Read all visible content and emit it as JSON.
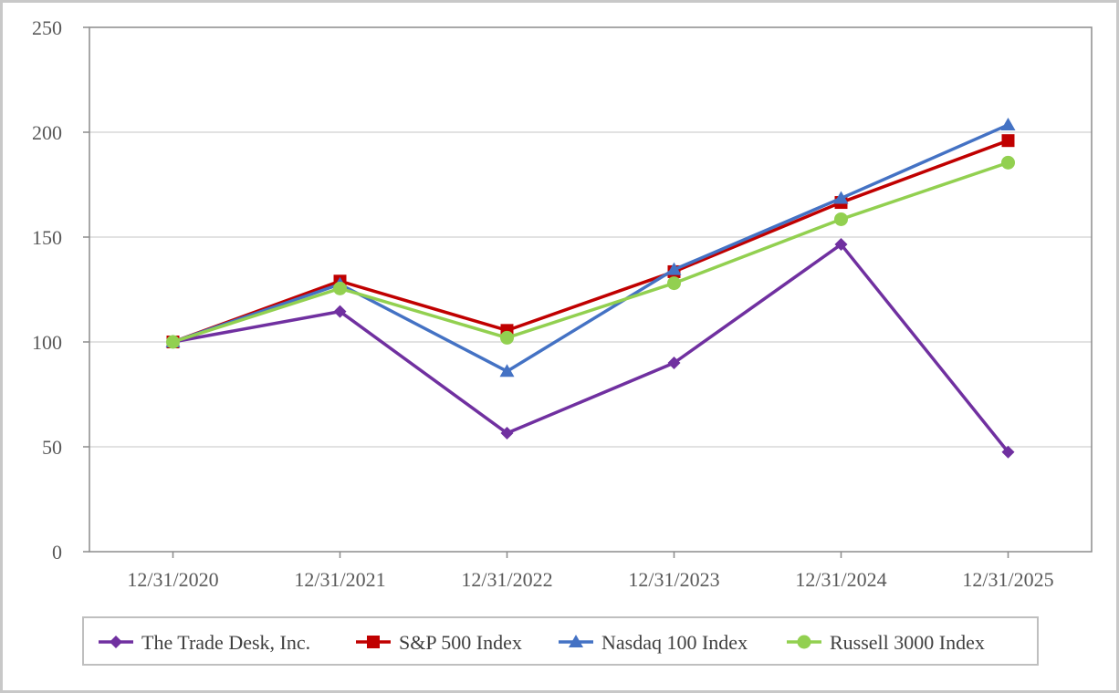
{
  "chart_data": {
    "type": "line",
    "categories": [
      "12/31/2020",
      "12/31/2021",
      "12/31/2022",
      "12/31/2023",
      "12/31/2024",
      "12/31/2025"
    ],
    "ylim": [
      0,
      250
    ],
    "yticks": [
      0,
      50,
      100,
      150,
      200,
      250
    ],
    "grid": true,
    "legend_position": "bottom",
    "series": [
      {
        "name": "The Trade Desk, Inc.",
        "color": "#7030a0",
        "marker": "diamond",
        "values": [
          100,
          114.5,
          56.5,
          90,
          146.5,
          47.5
        ]
      },
      {
        "name": "S&P 500 Index",
        "color": "#c00000",
        "marker": "square",
        "values": [
          100,
          129,
          105.5,
          133.5,
          166.5,
          196
        ]
      },
      {
        "name": "Nasdaq 100 Index",
        "color": "#4472c4",
        "marker": "triangle",
        "values": [
          100,
          127.5,
          86,
          134.5,
          168.5,
          203.5
        ]
      },
      {
        "name": "Russell 3000 Index",
        "color": "#92d050",
        "marker": "circle",
        "values": [
          100,
          125.5,
          102,
          128,
          158.5,
          185.5
        ]
      }
    ]
  }
}
